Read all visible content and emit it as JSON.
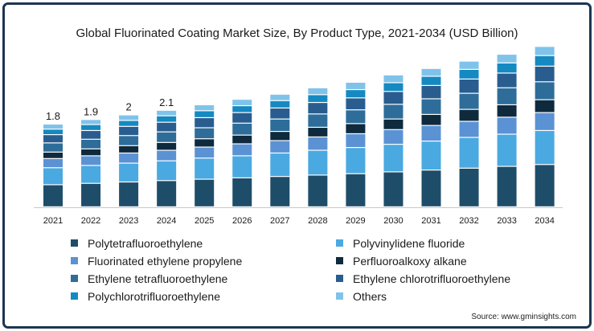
{
  "chart_data": {
    "type": "bar",
    "stacked": true,
    "title": "Global Fluorinated Coating Market Size, By Product Type, 2021-2034 (USD Billion)",
    "xlabel": "",
    "ylabel": "",
    "categories": [
      "2021",
      "2022",
      "2023",
      "2024",
      "2025",
      "2026",
      "2027",
      "2028",
      "2029",
      "2030",
      "2031",
      "2032",
      "2033",
      "2034"
    ],
    "totals": [
      1.8,
      1.9,
      2,
      2.1,
      null,
      null,
      null,
      null,
      null,
      null,
      null,
      null,
      null,
      null
    ],
    "total_labels": [
      "1.8",
      "1.9",
      "2",
      "2.1"
    ],
    "series": [
      {
        "name": "Polytetrafluoroethylene",
        "color": "#1e4d69",
        "values": [
          0.48,
          0.51,
          0.54,
          0.57,
          0.6,
          0.63,
          0.66,
          0.69,
          0.72,
          0.76,
          0.8,
          0.84,
          0.88,
          0.92
        ]
      },
      {
        "name": "Polyvinylidene fluoride",
        "color": "#4aa9e0",
        "values": [
          0.37,
          0.39,
          0.41,
          0.43,
          0.46,
          0.48,
          0.51,
          0.54,
          0.57,
          0.6,
          0.63,
          0.67,
          0.7,
          0.74
        ]
      },
      {
        "name": "Fluorinated ethylene propylene",
        "color": "#5b92d4",
        "values": [
          0.2,
          0.21,
          0.22,
          0.23,
          0.24,
          0.26,
          0.27,
          0.29,
          0.3,
          0.32,
          0.34,
          0.35,
          0.37,
          0.39
        ]
      },
      {
        "name": "Perfluoroalkoxy alkane",
        "color": "#0f2a3d",
        "values": [
          0.14,
          0.15,
          0.16,
          0.17,
          0.18,
          0.19,
          0.2,
          0.21,
          0.22,
          0.23,
          0.24,
          0.26,
          0.27,
          0.28
        ]
      },
      {
        "name": "Ethylene tetrafluoroethylene",
        "color": "#2e6d99",
        "values": [
          0.2,
          0.21,
          0.22,
          0.23,
          0.24,
          0.26,
          0.27,
          0.29,
          0.3,
          0.32,
          0.34,
          0.35,
          0.37,
          0.39
        ]
      },
      {
        "name": "Ethylene chlorotrifluoroethylene",
        "color": "#2a5d8f",
        "values": [
          0.18,
          0.19,
          0.2,
          0.21,
          0.22,
          0.23,
          0.24,
          0.25,
          0.26,
          0.28,
          0.29,
          0.31,
          0.32,
          0.34
        ]
      },
      {
        "name": "Polychlorotrifluoroethylene",
        "color": "#1589c1",
        "values": [
          0.12,
          0.13,
          0.13,
          0.14,
          0.15,
          0.15,
          0.16,
          0.17,
          0.18,
          0.19,
          0.2,
          0.21,
          0.22,
          0.23
        ]
      },
      {
        "name": "Others",
        "color": "#7fc3ea",
        "values": [
          0.11,
          0.11,
          0.12,
          0.12,
          0.13,
          0.14,
          0.14,
          0.15,
          0.16,
          0.17,
          0.17,
          0.18,
          0.19,
          0.2
        ]
      }
    ],
    "grid": false,
    "legend_position": "bottom"
  },
  "source": "Source: www.gminsights.com"
}
